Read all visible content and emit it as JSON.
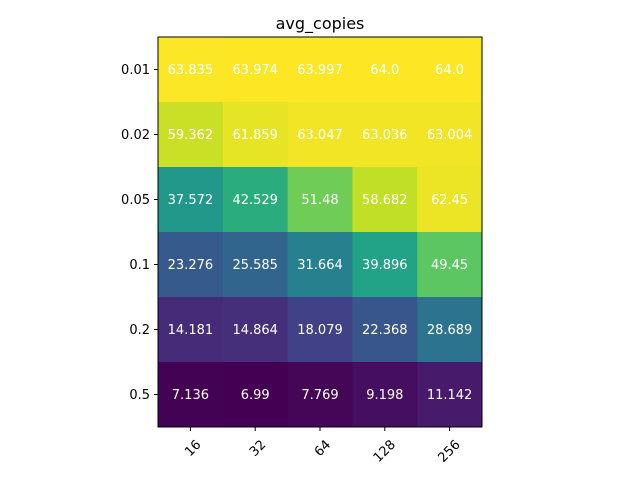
{
  "chart_data": {
    "type": "heatmap",
    "title": "avg_copies",
    "x": [
      "16",
      "32",
      "64",
      "128",
      "256"
    ],
    "y": [
      "0.01",
      "0.02",
      "0.05",
      "0.1",
      "0.2",
      "0.5"
    ],
    "values": [
      [
        63.835,
        63.974,
        63.997,
        64.0,
        64.0
      ],
      [
        59.362,
        61.859,
        63.047,
        63.036,
        63.004
      ],
      [
        37.572,
        42.529,
        51.48,
        58.682,
        62.45
      ],
      [
        23.276,
        25.585,
        31.664,
        39.896,
        49.45
      ],
      [
        14.181,
        14.864,
        18.079,
        22.368,
        28.689
      ],
      [
        7.136,
        6.99,
        7.769,
        9.198,
        11.142
      ]
    ],
    "value_labels": [
      [
        "63.835",
        "63.974",
        "63.997",
        "64.0",
        "64.0"
      ],
      [
        "59.362",
        "61.859",
        "63.047",
        "63.036",
        "63.004"
      ],
      [
        "37.572",
        "42.529",
        "51.48",
        "58.682",
        "62.45"
      ],
      [
        "23.276",
        "25.585",
        "31.664",
        "39.896",
        "49.45"
      ],
      [
        "14.181",
        "14.864",
        "18.079",
        "22.368",
        "28.689"
      ],
      [
        "7.136",
        "6.99",
        "7.769",
        "9.198",
        "11.142"
      ]
    ],
    "colormap": "viridis",
    "annotation_color": "#ffffff",
    "xlabel": "",
    "ylabel": ""
  }
}
